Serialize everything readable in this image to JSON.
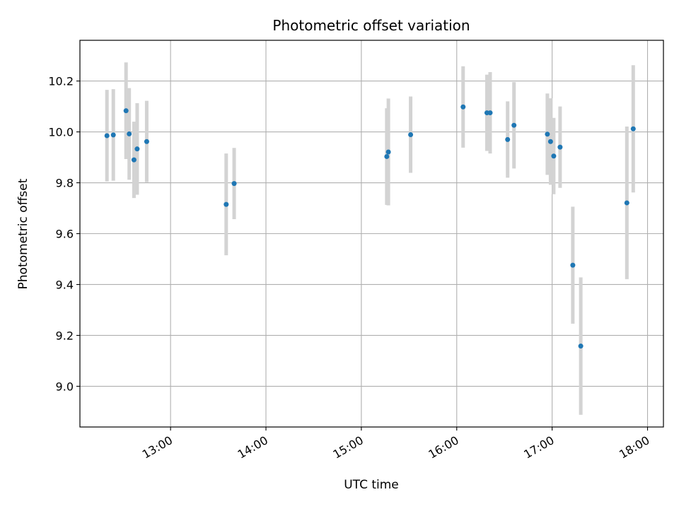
{
  "chart_data": {
    "type": "scatter",
    "title": "Photometric offset variation",
    "xlabel": "UTC time",
    "ylabel": "Photometric offset",
    "x_unit": "UTC time of day",
    "xlim": [
      "12:03",
      "18:10"
    ],
    "ylim": [
      8.84,
      10.36
    ],
    "x_ticks": [
      "13:00",
      "14:00",
      "15:00",
      "16:00",
      "17:00",
      "18:00"
    ],
    "y_ticks": [
      9.0,
      9.2,
      9.4,
      9.6,
      9.8,
      10.0,
      10.2
    ],
    "y_tick_labels": [
      "9.0",
      "9.2",
      "9.4",
      "9.6",
      "9.8",
      "10.0",
      "10.2"
    ],
    "grid": true,
    "colors": {
      "point": "#1f77b4",
      "errorbar": "#d3d3d3",
      "grid": "#b0b0b0"
    },
    "series": [
      {
        "points": [
          {
            "x": "12:20",
            "y": 9.985,
            "err": 0.18
          },
          {
            "x": "12:24",
            "y": 9.988,
            "err": 0.18
          },
          {
            "x": "12:32",
            "y": 10.083,
            "err": 0.19
          },
          {
            "x": "12:34",
            "y": 9.992,
            "err": 0.18
          },
          {
            "x": "12:37",
            "y": 9.89,
            "err": 0.15
          },
          {
            "x": "12:39",
            "y": 9.933,
            "err": 0.18
          },
          {
            "x": "12:45",
            "y": 9.962,
            "err": 0.16
          },
          {
            "x": "13:35",
            "y": 9.715,
            "err": 0.2
          },
          {
            "x": "13:40",
            "y": 9.797,
            "err": 0.14
          },
          {
            "x": "15:16",
            "y": 9.903,
            "err": 0.19
          },
          {
            "x": "15:17",
            "y": 9.921,
            "err": 0.21
          },
          {
            "x": "15:31",
            "y": 9.989,
            "err": 0.15
          },
          {
            "x": "16:04",
            "y": 10.098,
            "err": 0.16
          },
          {
            "x": "16:19",
            "y": 10.075,
            "err": 0.15
          },
          {
            "x": "16:21",
            "y": 10.075,
            "err": 0.16
          },
          {
            "x": "16:32",
            "y": 9.97,
            "err": 0.15
          },
          {
            "x": "16:36",
            "y": 10.026,
            "err": 0.17
          },
          {
            "x": "16:57",
            "y": 9.991,
            "err": 0.16
          },
          {
            "x": "16:59",
            "y": 9.962,
            "err": 0.17
          },
          {
            "x": "17:01",
            "y": 9.905,
            "err": 0.15
          },
          {
            "x": "17:05",
            "y": 9.94,
            "err": 0.16
          },
          {
            "x": "17:13",
            "y": 9.476,
            "err": 0.23
          },
          {
            "x": "17:18",
            "y": 9.158,
            "err": 0.27
          },
          {
            "x": "17:47",
            "y": 9.721,
            "err": 0.3
          },
          {
            "x": "17:51",
            "y": 10.012,
            "err": 0.25
          }
        ]
      }
    ]
  }
}
